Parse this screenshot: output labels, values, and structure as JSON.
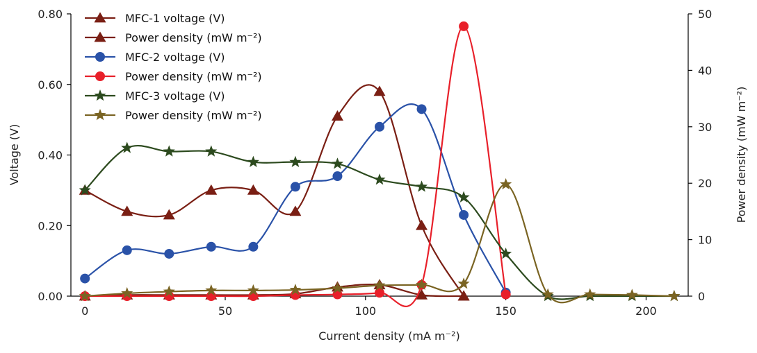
{
  "chart_data": {
    "type": "line",
    "xlabel": "Current density (mA m⁻²)",
    "ylabel_left": "Voltage (V)",
    "ylabel_right": "Power density (mW m⁻²)",
    "xlim": [
      -5,
      215
    ],
    "ylim_left": [
      0,
      0.8
    ],
    "ylim_right": [
      0,
      50
    ],
    "x_ticks": [
      0,
      50,
      100,
      150,
      200
    ],
    "x_tick_labels": [
      "0",
      "50",
      "100",
      "150",
      "200"
    ],
    "y_left_ticks": [
      0,
      0.2,
      0.4,
      0.6,
      0.8
    ],
    "y_left_tick_labels": [
      "0.00",
      "0.20",
      "0.40",
      "0.60",
      "0.80"
    ],
    "y_right_ticks": [
      0,
      10,
      20,
      30,
      40,
      50
    ],
    "y_right_tick_labels": [
      "0",
      "10",
      "20",
      "30",
      "40",
      "50"
    ],
    "grid": false,
    "legend_position": "top-left",
    "series": [
      {
        "name": "MFC-1 voltage (V)",
        "axis": "left",
        "marker": "triangle",
        "color": "#7a1f14",
        "x": [
          0,
          15,
          30,
          45,
          60,
          75,
          90,
          105,
          120,
          135
        ],
        "y": [
          0.3,
          0.24,
          0.23,
          0.3,
          0.3,
          0.24,
          0.51,
          0.58,
          0.2,
          0.0
        ]
      },
      {
        "name": "Power density (mW m⁻²)",
        "axis": "right",
        "marker": "triangle",
        "color": "#7a1f14",
        "x": [
          0,
          15,
          30,
          45,
          60,
          75,
          90,
          105,
          120,
          135
        ],
        "y": [
          0,
          0.2,
          0.2,
          0.2,
          0.2,
          0.4,
          1.6,
          2.0,
          0.2,
          0
        ]
      },
      {
        "name": "MFC-2 voltage (V)",
        "axis": "left",
        "marker": "circle",
        "color": "#2a52a8",
        "x": [
          0,
          15,
          30,
          45,
          60,
          75,
          90,
          105,
          120,
          135,
          150
        ],
        "y": [
          0.05,
          0.13,
          0.12,
          0.14,
          0.14,
          0.31,
          0.34,
          0.48,
          0.53,
          0.23,
          0.01
        ]
      },
      {
        "name": "Power density (mW m⁻²)",
        "axis": "right",
        "marker": "circle",
        "color": "#e8202a",
        "x": [
          0,
          15,
          30,
          45,
          60,
          75,
          90,
          105,
          120,
          135,
          150
        ],
        "y": [
          0,
          0,
          0,
          0,
          0,
          0.2,
          0.3,
          0.6,
          2.0,
          47.8,
          0.3
        ]
      },
      {
        "name": "MFC-3 voltage (V)",
        "axis": "left",
        "marker": "star",
        "color": "#2c4a1e",
        "x": [
          0,
          15,
          30,
          45,
          60,
          75,
          90,
          105,
          120,
          135,
          150,
          165,
          180,
          195,
          210
        ],
        "y": [
          0.3,
          0.42,
          0.41,
          0.41,
          0.38,
          0.38,
          0.375,
          0.33,
          0.31,
          0.28,
          0.12,
          0.0,
          0.0,
          0.0,
          0.0
        ]
      },
      {
        "name": "Power density (mW m⁻²)",
        "axis": "right",
        "marker": "star",
        "color": "#7a6423",
        "x": [
          0,
          15,
          30,
          45,
          60,
          75,
          90,
          105,
          120,
          135,
          150,
          165,
          180,
          195,
          210
        ],
        "y": [
          0,
          0.5,
          0.8,
          1.0,
          1.0,
          1.1,
          1.4,
          1.9,
          2.0,
          2.2,
          19.8,
          0.3,
          0.3,
          0.2,
          0
        ]
      }
    ]
  }
}
